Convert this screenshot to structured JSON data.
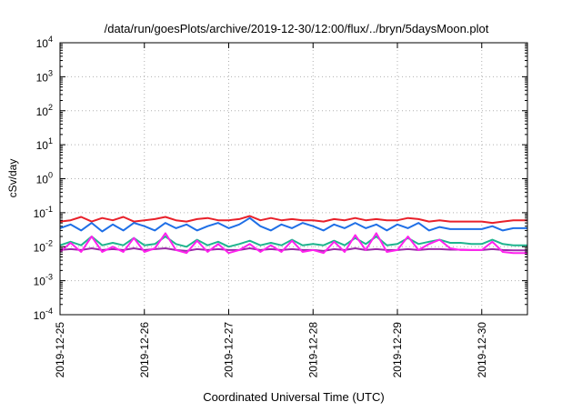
{
  "chart_data": {
    "type": "line",
    "title": "/data/run/goesPlots/archive/2019-12-30/12:00/flux/../bryn/5daysMoon.plot",
    "xlabel": "Coordinated Universal Time (UTC)",
    "ylabel": "cSv/day",
    "yscale": "log",
    "ylim": [
      0.0001,
      10000
    ],
    "xlim": [
      "2019-12-25",
      "2019-12-30 13:00"
    ],
    "grid": true,
    "x_ticks": [
      "2019-12-25",
      "2019-12-26",
      "2019-12-27",
      "2019-12-28",
      "2019-12-29",
      "2019-12-30"
    ],
    "y_ticks": [
      {
        "value": 0.0001,
        "base": "10",
        "exp": "-4"
      },
      {
        "value": 0.001,
        "base": "10",
        "exp": "-3"
      },
      {
        "value": 0.01,
        "base": "10",
        "exp": "-2"
      },
      {
        "value": 0.1,
        "base": "10",
        "exp": "-1"
      },
      {
        "value": 1,
        "base": "10",
        "exp": "0"
      },
      {
        "value": 10,
        "base": "10",
        "exp": "1"
      },
      {
        "value": 100,
        "base": "10",
        "exp": "2"
      },
      {
        "value": 1000,
        "base": "10",
        "exp": "3"
      },
      {
        "value": 10000,
        "base": "10",
        "exp": "4"
      }
    ],
    "series": [
      {
        "color": "#e8202a",
        "points": [
          [
            "2019-12-25 00:00",
            0.055
          ],
          [
            "2019-12-25 03:00",
            0.06
          ],
          [
            "2019-12-25 06:00",
            0.075
          ],
          [
            "2019-12-25 09:00",
            0.055
          ],
          [
            "2019-12-25 12:00",
            0.07
          ],
          [
            "2019-12-25 15:00",
            0.06
          ],
          [
            "2019-12-25 18:00",
            0.075
          ],
          [
            "2019-12-25 21:00",
            0.055
          ],
          [
            "2019-12-26 00:00",
            0.06
          ],
          [
            "2019-12-26 03:00",
            0.065
          ],
          [
            "2019-12-26 06:00",
            0.075
          ],
          [
            "2019-12-26 09:00",
            0.06
          ],
          [
            "2019-12-26 12:00",
            0.055
          ],
          [
            "2019-12-26 15:00",
            0.065
          ],
          [
            "2019-12-26 18:00",
            0.07
          ],
          [
            "2019-12-26 21:00",
            0.06
          ],
          [
            "2019-12-27 00:00",
            0.06
          ],
          [
            "2019-12-27 03:00",
            0.065
          ],
          [
            "2019-12-27 06:00",
            0.08
          ],
          [
            "2019-12-27 09:00",
            0.06
          ],
          [
            "2019-12-27 12:00",
            0.07
          ],
          [
            "2019-12-27 15:00",
            0.06
          ],
          [
            "2019-12-27 18:00",
            0.065
          ],
          [
            "2019-12-27 21:00",
            0.06
          ],
          [
            "2019-12-28 00:00",
            0.06
          ],
          [
            "2019-12-28 03:00",
            0.055
          ],
          [
            "2019-12-28 06:00",
            0.065
          ],
          [
            "2019-12-28 09:00",
            0.06
          ],
          [
            "2019-12-28 12:00",
            0.07
          ],
          [
            "2019-12-28 15:00",
            0.06
          ],
          [
            "2019-12-28 18:00",
            0.065
          ],
          [
            "2019-12-28 21:00",
            0.06
          ],
          [
            "2019-12-29 00:00",
            0.06
          ],
          [
            "2019-12-29 03:00",
            0.07
          ],
          [
            "2019-12-29 06:00",
            0.065
          ],
          [
            "2019-12-29 09:00",
            0.055
          ],
          [
            "2019-12-29 12:00",
            0.06
          ],
          [
            "2019-12-29 15:00",
            0.055
          ],
          [
            "2019-12-29 18:00",
            0.055
          ],
          [
            "2019-12-29 21:00",
            0.055
          ],
          [
            "2019-12-30 00:00",
            0.055
          ],
          [
            "2019-12-30 03:00",
            0.05
          ],
          [
            "2019-12-30 06:00",
            0.055
          ],
          [
            "2019-12-30 09:00",
            0.06
          ],
          [
            "2019-12-30 13:00",
            0.06
          ]
        ]
      },
      {
        "color": "#1f6fe6",
        "points": [
          [
            "2019-12-25 00:00",
            0.035
          ],
          [
            "2019-12-25 03:00",
            0.045
          ],
          [
            "2019-12-25 06:00",
            0.03
          ],
          [
            "2019-12-25 09:00",
            0.05
          ],
          [
            "2019-12-25 12:00",
            0.028
          ],
          [
            "2019-12-25 15:00",
            0.045
          ],
          [
            "2019-12-25 18:00",
            0.03
          ],
          [
            "2019-12-25 21:00",
            0.05
          ],
          [
            "2019-12-26 00:00",
            0.04
          ],
          [
            "2019-12-26 03:00",
            0.03
          ],
          [
            "2019-12-26 06:00",
            0.05
          ],
          [
            "2019-12-26 09:00",
            0.035
          ],
          [
            "2019-12-26 12:00",
            0.045
          ],
          [
            "2019-12-26 15:00",
            0.03
          ],
          [
            "2019-12-26 18:00",
            0.04
          ],
          [
            "2019-12-26 21:00",
            0.05
          ],
          [
            "2019-12-27 00:00",
            0.035
          ],
          [
            "2019-12-27 03:00",
            0.045
          ],
          [
            "2019-12-27 06:00",
            0.07
          ],
          [
            "2019-12-27 09:00",
            0.04
          ],
          [
            "2019-12-27 12:00",
            0.03
          ],
          [
            "2019-12-27 15:00",
            0.045
          ],
          [
            "2019-12-27 18:00",
            0.035
          ],
          [
            "2019-12-27 21:00",
            0.05
          ],
          [
            "2019-12-28 00:00",
            0.04
          ],
          [
            "2019-12-28 03:00",
            0.03
          ],
          [
            "2019-12-28 06:00",
            0.045
          ],
          [
            "2019-12-28 09:00",
            0.035
          ],
          [
            "2019-12-28 12:00",
            0.05
          ],
          [
            "2019-12-28 15:00",
            0.035
          ],
          [
            "2019-12-28 18:00",
            0.045
          ],
          [
            "2019-12-28 21:00",
            0.03
          ],
          [
            "2019-12-29 00:00",
            0.045
          ],
          [
            "2019-12-29 03:00",
            0.035
          ],
          [
            "2019-12-29 06:00",
            0.05
          ],
          [
            "2019-12-29 09:00",
            0.03
          ],
          [
            "2019-12-29 12:00",
            0.038
          ],
          [
            "2019-12-29 15:00",
            0.033
          ],
          [
            "2019-12-29 18:00",
            0.033
          ],
          [
            "2019-12-29 21:00",
            0.033
          ],
          [
            "2019-12-30 00:00",
            0.033
          ],
          [
            "2019-12-30 03:00",
            0.04
          ],
          [
            "2019-12-30 06:00",
            0.03
          ],
          [
            "2019-12-30 09:00",
            0.035
          ],
          [
            "2019-12-30 13:00",
            0.035
          ]
        ]
      },
      {
        "color": "#1fb58e",
        "points": [
          [
            "2019-12-25 00:00",
            0.011
          ],
          [
            "2019-12-25 03:00",
            0.014
          ],
          [
            "2019-12-25 06:00",
            0.011
          ],
          [
            "2019-12-25 09:00",
            0.02
          ],
          [
            "2019-12-25 12:00",
            0.011
          ],
          [
            "2019-12-25 15:00",
            0.013
          ],
          [
            "2019-12-25 18:00",
            0.011
          ],
          [
            "2019-12-25 21:00",
            0.018
          ],
          [
            "2019-12-26 00:00",
            0.011
          ],
          [
            "2019-12-26 03:00",
            0.012
          ],
          [
            "2019-12-26 06:00",
            0.02
          ],
          [
            "2019-12-26 09:00",
            0.012
          ],
          [
            "2019-12-26 12:00",
            0.01
          ],
          [
            "2019-12-26 15:00",
            0.016
          ],
          [
            "2019-12-26 18:00",
            0.011
          ],
          [
            "2019-12-26 21:00",
            0.014
          ],
          [
            "2019-12-27 00:00",
            0.01
          ],
          [
            "2019-12-27 03:00",
            0.012
          ],
          [
            "2019-12-27 06:00",
            0.015
          ],
          [
            "2019-12-27 09:00",
            0.011
          ],
          [
            "2019-12-27 12:00",
            0.013
          ],
          [
            "2019-12-27 15:00",
            0.011
          ],
          [
            "2019-12-27 18:00",
            0.016
          ],
          [
            "2019-12-27 21:00",
            0.011
          ],
          [
            "2019-12-28 00:00",
            0.012
          ],
          [
            "2019-12-28 03:00",
            0.011
          ],
          [
            "2019-12-28 06:00",
            0.015
          ],
          [
            "2019-12-28 09:00",
            0.011
          ],
          [
            "2019-12-28 12:00",
            0.018
          ],
          [
            "2019-12-28 15:00",
            0.012
          ],
          [
            "2019-12-28 18:00",
            0.02
          ],
          [
            "2019-12-28 21:00",
            0.011
          ],
          [
            "2019-12-29 00:00",
            0.012
          ],
          [
            "2019-12-29 03:00",
            0.018
          ],
          [
            "2019-12-29 06:00",
            0.012
          ],
          [
            "2019-12-29 09:00",
            0.014
          ],
          [
            "2019-12-29 12:00",
            0.016
          ],
          [
            "2019-12-29 15:00",
            0.013
          ],
          [
            "2019-12-29 18:00",
            0.013
          ],
          [
            "2019-12-29 21:00",
            0.012
          ],
          [
            "2019-12-30 00:00",
            0.012
          ],
          [
            "2019-12-30 03:00",
            0.016
          ],
          [
            "2019-12-30 06:00",
            0.012
          ],
          [
            "2019-12-30 09:00",
            0.011
          ],
          [
            "2019-12-30 13:00",
            0.011
          ]
        ]
      },
      {
        "color": "#9b2aa8",
        "points": [
          [
            "2019-12-25 00:00",
            0.008
          ],
          [
            "2019-12-25 03:00",
            0.0085
          ],
          [
            "2019-12-25 06:00",
            0.008
          ],
          [
            "2019-12-25 09:00",
            0.009
          ],
          [
            "2019-12-25 12:00",
            0.008
          ],
          [
            "2019-12-25 15:00",
            0.0085
          ],
          [
            "2019-12-25 18:00",
            0.008
          ],
          [
            "2019-12-25 21:00",
            0.009
          ],
          [
            "2019-12-26 00:00",
            0.008
          ],
          [
            "2019-12-26 03:00",
            0.0085
          ],
          [
            "2019-12-26 06:00",
            0.009
          ],
          [
            "2019-12-26 09:00",
            0.008
          ],
          [
            "2019-12-26 12:00",
            0.0075
          ],
          [
            "2019-12-26 15:00",
            0.0085
          ],
          [
            "2019-12-26 18:00",
            0.008
          ],
          [
            "2019-12-26 21:00",
            0.0085
          ],
          [
            "2019-12-27 00:00",
            0.008
          ],
          [
            "2019-12-27 03:00",
            0.008
          ],
          [
            "2019-12-27 06:00",
            0.009
          ],
          [
            "2019-12-27 09:00",
            0.008
          ],
          [
            "2019-12-27 12:00",
            0.0085
          ],
          [
            "2019-12-27 15:00",
            0.008
          ],
          [
            "2019-12-27 18:00",
            0.0085
          ],
          [
            "2019-12-27 21:00",
            0.008
          ],
          [
            "2019-12-28 00:00",
            0.008
          ],
          [
            "2019-12-28 03:00",
            0.0075
          ],
          [
            "2019-12-28 06:00",
            0.0085
          ],
          [
            "2019-12-28 09:00",
            0.008
          ],
          [
            "2019-12-28 12:00",
            0.009
          ],
          [
            "2019-12-28 15:00",
            0.008
          ],
          [
            "2019-12-28 18:00",
            0.0085
          ],
          [
            "2019-12-28 21:00",
            0.008
          ],
          [
            "2019-12-29 00:00",
            0.008
          ],
          [
            "2019-12-29 03:00",
            0.0085
          ],
          [
            "2019-12-29 06:00",
            0.008
          ],
          [
            "2019-12-29 09:00",
            0.0085
          ],
          [
            "2019-12-29 12:00",
            0.0085
          ],
          [
            "2019-12-29 15:00",
            0.0082
          ],
          [
            "2019-12-29 18:00",
            0.0082
          ],
          [
            "2019-12-29 21:00",
            0.008
          ],
          [
            "2019-12-30 00:00",
            0.008
          ],
          [
            "2019-12-30 03:00",
            0.0085
          ],
          [
            "2019-12-30 06:00",
            0.008
          ],
          [
            "2019-12-30 09:00",
            0.0078
          ],
          [
            "2019-12-30 13:00",
            0.0078
          ]
        ]
      },
      {
        "color": "#ff22ee",
        "points": [
          [
            "2019-12-25 00:00",
            0.007
          ],
          [
            "2019-12-25 03:00",
            0.013
          ],
          [
            "2019-12-25 06:00",
            0.007
          ],
          [
            "2019-12-25 09:00",
            0.02
          ],
          [
            "2019-12-25 12:00",
            0.007
          ],
          [
            "2019-12-25 15:00",
            0.01
          ],
          [
            "2019-12-25 18:00",
            0.007
          ],
          [
            "2019-12-25 21:00",
            0.018
          ],
          [
            "2019-12-26 00:00",
            0.007
          ],
          [
            "2019-12-26 03:00",
            0.009
          ],
          [
            "2019-12-26 06:00",
            0.025
          ],
          [
            "2019-12-26 09:00",
            0.008
          ],
          [
            "2019-12-26 12:00",
            0.0065
          ],
          [
            "2019-12-26 15:00",
            0.015
          ],
          [
            "2019-12-26 18:00",
            0.007
          ],
          [
            "2019-12-26 21:00",
            0.012
          ],
          [
            "2019-12-27 00:00",
            0.0065
          ],
          [
            "2019-12-27 03:00",
            0.008
          ],
          [
            "2019-12-27 06:00",
            0.012
          ],
          [
            "2019-12-27 09:00",
            0.007
          ],
          [
            "2019-12-27 12:00",
            0.011
          ],
          [
            "2019-12-27 15:00",
            0.007
          ],
          [
            "2019-12-27 18:00",
            0.015
          ],
          [
            "2019-12-27 21:00",
            0.007
          ],
          [
            "2019-12-28 00:00",
            0.008
          ],
          [
            "2019-12-28 03:00",
            0.0065
          ],
          [
            "2019-12-28 06:00",
            0.014
          ],
          [
            "2019-12-28 09:00",
            0.007
          ],
          [
            "2019-12-28 12:00",
            0.022
          ],
          [
            "2019-12-28 15:00",
            0.008
          ],
          [
            "2019-12-28 18:00",
            0.025
          ],
          [
            "2019-12-28 21:00",
            0.007
          ],
          [
            "2019-12-29 00:00",
            0.008
          ],
          [
            "2019-12-29 03:00",
            0.02
          ],
          [
            "2019-12-29 06:00",
            0.008
          ],
          [
            "2019-12-29 09:00",
            0.012
          ],
          [
            "2019-12-29 12:00",
            0.016
          ],
          [
            "2019-12-29 15:00",
            0.009
          ],
          [
            "2019-12-29 18:00",
            0.008
          ],
          [
            "2019-12-29 21:00",
            0.008
          ],
          [
            "2019-12-30 00:00",
            0.008
          ],
          [
            "2019-12-30 03:00",
            0.014
          ],
          [
            "2019-12-30 06:00",
            0.007
          ],
          [
            "2019-12-30 09:00",
            0.0065
          ],
          [
            "2019-12-30 13:00",
            0.0065
          ]
        ]
      }
    ]
  }
}
